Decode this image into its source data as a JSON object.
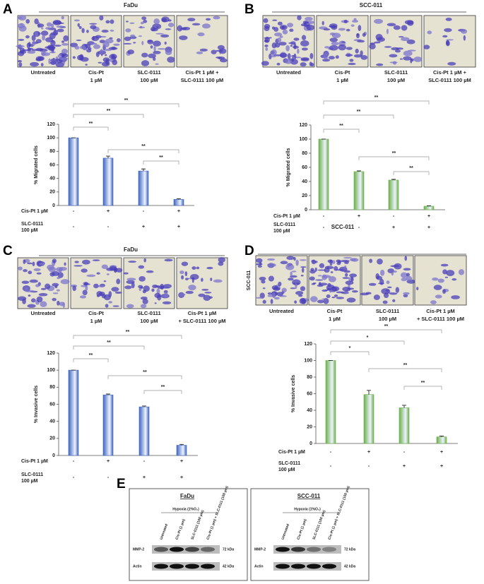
{
  "panels": [
    {
      "letter": "A",
      "cell_line": "FaDu",
      "captions": [
        [
          "Untreated"
        ],
        [
          "Cis-Pt",
          "1 µM"
        ],
        [
          "SLC-0111",
          "100 µM"
        ],
        [
          "Cis-Pt 1 µM +",
          "SLC-0111 100 µM"
        ]
      ]
    },
    {
      "letter": "B",
      "cell_line": "SCC-011",
      "captions": [
        [
          "Untreated"
        ],
        [
          "Cis-Pt",
          "1 µM"
        ],
        [
          "SLC-0111",
          "100 µM"
        ],
        [
          "Cis-Pt 1 µM +",
          "SLC-0111 100 µM"
        ]
      ]
    },
    {
      "letter": "C",
      "cell_line": "FaDu",
      "captions": [
        [
          "Untreated"
        ],
        [
          "Cis-Pt",
          "1 µM"
        ],
        [
          "SLC-0111",
          "100 µM"
        ],
        [
          "Cis-Pt 1 µM",
          "+ SLC-0111 100 µM"
        ]
      ]
    },
    {
      "letter": "D",
      "cell_line": "SCC-011",
      "side_label": "SCC-011",
      "captions": [
        [
          "Untreated"
        ],
        [
          "Cis-Pt",
          "1 µM"
        ],
        [
          "SLC-0111",
          "100 µM"
        ],
        [
          "Cis-Pt 1 µM",
          "+ SLC-0111 100 µM"
        ]
      ]
    }
  ],
  "chart_data": [
    {
      "type": "bar",
      "ylabel": "% Migrated cells",
      "values": [
        100,
        70,
        51,
        9
      ],
      "errors": [
        0,
        3,
        3,
        1
      ],
      "color": "#3f66c0",
      "ylim": [
        0,
        120
      ],
      "yticks": [
        0,
        20,
        40,
        60,
        80,
        100,
        120
      ],
      "significance": [
        "**",
        "**",
        "**",
        "**",
        "**"
      ],
      "treatments": [
        {
          "label": [
            "Cis-Pt 1 µM"
          ],
          "signs": [
            "-",
            "+",
            "-",
            "+"
          ]
        },
        {
          "label": [
            "SLC-0111",
            "100 µM"
          ],
          "signs": [
            "-",
            "-",
            "+",
            "+"
          ]
        }
      ]
    },
    {
      "type": "bar",
      "ylabel": "% Migrated cells",
      "values": [
        100,
        54,
        42,
        5
      ],
      "errors": [
        0,
        1,
        1,
        0.5
      ],
      "color": "#6bb04a",
      "ylim": [
        0,
        120
      ],
      "yticks": [
        0,
        20,
        40,
        60,
        80,
        100,
        120
      ],
      "significance": [
        "**",
        "**",
        "**",
        "**",
        "**"
      ],
      "treatments": [
        {
          "label": [
            "Cis-Pt 1 µM"
          ],
          "signs": [
            "-",
            "+",
            "-",
            "+"
          ]
        },
        {
          "label": [
            "SLC-0111",
            "100 µM"
          ],
          "signs": [
            "-",
            "-",
            "+",
            "+"
          ]
        }
      ]
    },
    {
      "type": "bar",
      "ylabel": "% Invasive cells",
      "values": [
        100,
        71,
        57,
        12
      ],
      "errors": [
        0,
        1,
        1,
        1
      ],
      "color": "#3f66c0",
      "ylim": [
        0,
        120
      ],
      "yticks": [
        0,
        20,
        40,
        60,
        80,
        100,
        120
      ],
      "significance": [
        "**",
        "**",
        "**",
        "**",
        "**"
      ],
      "treatments": [
        {
          "label": [
            "Cis-Pt 1 µM"
          ],
          "signs": [
            "-",
            "+",
            "-",
            "+"
          ]
        },
        {
          "label": [
            "SLC-0111",
            "100 µM"
          ],
          "signs": [
            "-",
            "-",
            "+",
            "+"
          ]
        }
      ]
    },
    {
      "type": "bar",
      "ylabel": "% Invasive cells",
      "values": [
        100,
        59,
        43,
        8
      ],
      "errors": [
        0,
        5,
        3,
        1
      ],
      "color": "#6bb04a",
      "ylim": [
        0,
        120
      ],
      "yticks": [
        0,
        20,
        40,
        60,
        80,
        100,
        120
      ],
      "significance": [
        "*",
        "*",
        "**",
        "**",
        "**"
      ],
      "treatments": [
        {
          "label": [
            "Cis-Pt 1 µM"
          ],
          "signs": [
            "-",
            "+",
            "-",
            "+"
          ]
        },
        {
          "label": [
            "SLC-0111",
            "100 µM"
          ],
          "signs": [
            "-",
            "-",
            "+",
            "+"
          ]
        }
      ]
    }
  ],
  "blot": {
    "letter": "E",
    "panels": [
      {
        "title": "FaDu",
        "condition": "Hypoxia (1%O₂)",
        "lanes": [
          "Untreated",
          "Cis-Pt (1 µm)",
          "SLC-0111 (100 µm)",
          "Cis-Pt (1 µm) + SLC-0111 (100 µm)"
        ],
        "rows": [
          {
            "protein": "MMP-2",
            "size": "72 kDa"
          },
          {
            "protein": "Actin",
            "size": "42 kDa"
          }
        ]
      },
      {
        "title": "SCC-011",
        "condition": "Hypoxia (1%O₂)",
        "lanes": [
          "Untreated",
          "Cis-Pt (1 µm)",
          "SLC-0111 (100 µm)",
          "Cis-Pt (1 µm) + SLC-0111 (100 µm)"
        ],
        "rows": [
          {
            "protein": "MMP-2",
            "size": "72 kDa"
          },
          {
            "protein": "Actin",
            "size": "42 kDa"
          }
        ]
      }
    ]
  }
}
